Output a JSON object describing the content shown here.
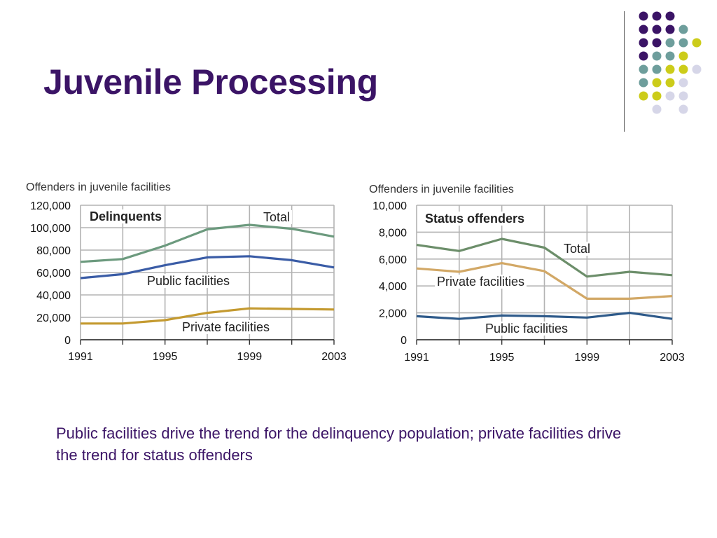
{
  "slide": {
    "title": "Juvenile Processing",
    "caption": "Public facilities drive the trend for the delinquency population; private facilities drive the trend for status offenders"
  },
  "decoration": {
    "dot_colors": {
      "purple": "#3b1466",
      "teal": "#6e9e9c",
      "yellow": "#cccc1a",
      "lavender": "#d6d6e8"
    },
    "dot_grid": [
      [
        "purple",
        "purple",
        "purple",
        null,
        null
      ],
      [
        "purple",
        "purple",
        "purple",
        "teal",
        null
      ],
      [
        "purple",
        "purple",
        "teal",
        "teal",
        "yellow"
      ],
      [
        "purple",
        "teal",
        "teal",
        "yellow",
        null
      ],
      [
        "teal",
        "teal",
        "yellow",
        "yellow",
        "lavender"
      ],
      [
        "teal",
        "yellow",
        "yellow",
        "lavender",
        null
      ],
      [
        "yellow",
        "yellow",
        "lavender",
        "lavender",
        null
      ],
      [
        null,
        "lavender",
        null,
        "lavender",
        null
      ]
    ]
  },
  "chart_data": [
    {
      "type": "line",
      "title": "Offenders in juvenile facilities",
      "panel_label": "Delinquents",
      "x": [
        1991,
        1993,
        1995,
        1997,
        1999,
        2001,
        2003
      ],
      "xticks": [
        "1991",
        "1995",
        "1999",
        "2003"
      ],
      "ylim": [
        0,
        120000
      ],
      "yticks": [
        "0",
        "20,000",
        "40,000",
        "60,000",
        "80,000",
        "100,000",
        "120,000"
      ],
      "grid": true,
      "series": [
        {
          "name": "Total",
          "color": "#6c9a7e",
          "values": [
            69500,
            72000,
            84000,
            98500,
            102500,
            99000,
            92000
          ]
        },
        {
          "name": "Public facilities",
          "color": "#3a5ca6",
          "values": [
            55000,
            58500,
            66500,
            73500,
            74500,
            71000,
            64500
          ]
        },
        {
          "name": "Private facilities",
          "color": "#c49a30",
          "values": [
            14500,
            14500,
            17500,
            24000,
            28000,
            27500,
            27000
          ]
        }
      ]
    },
    {
      "type": "line",
      "title": "Offenders in juvenile facilities",
      "panel_label": "Status offenders",
      "x": [
        1991,
        1993,
        1995,
        1997,
        1999,
        2001,
        2003
      ],
      "xticks": [
        "1991",
        "1995",
        "1999",
        "2003"
      ],
      "ylim": [
        0,
        10000
      ],
      "yticks": [
        "0",
        "2,000",
        "4,000",
        "6,000",
        "8,000",
        "10,000"
      ],
      "grid": true,
      "series": [
        {
          "name": "Total",
          "color": "#6c8e6a",
          "values": [
            7050,
            6600,
            7500,
            6850,
            4700,
            5050,
            4800
          ]
        },
        {
          "name": "Private facilities",
          "color": "#d2a866",
          "values": [
            5300,
            5050,
            5700,
            5100,
            3050,
            3050,
            3250
          ]
        },
        {
          "name": "Public facilities",
          "color": "#2e5a8a",
          "values": [
            1750,
            1550,
            1800,
            1750,
            1650,
            2000,
            1550
          ]
        }
      ]
    }
  ]
}
